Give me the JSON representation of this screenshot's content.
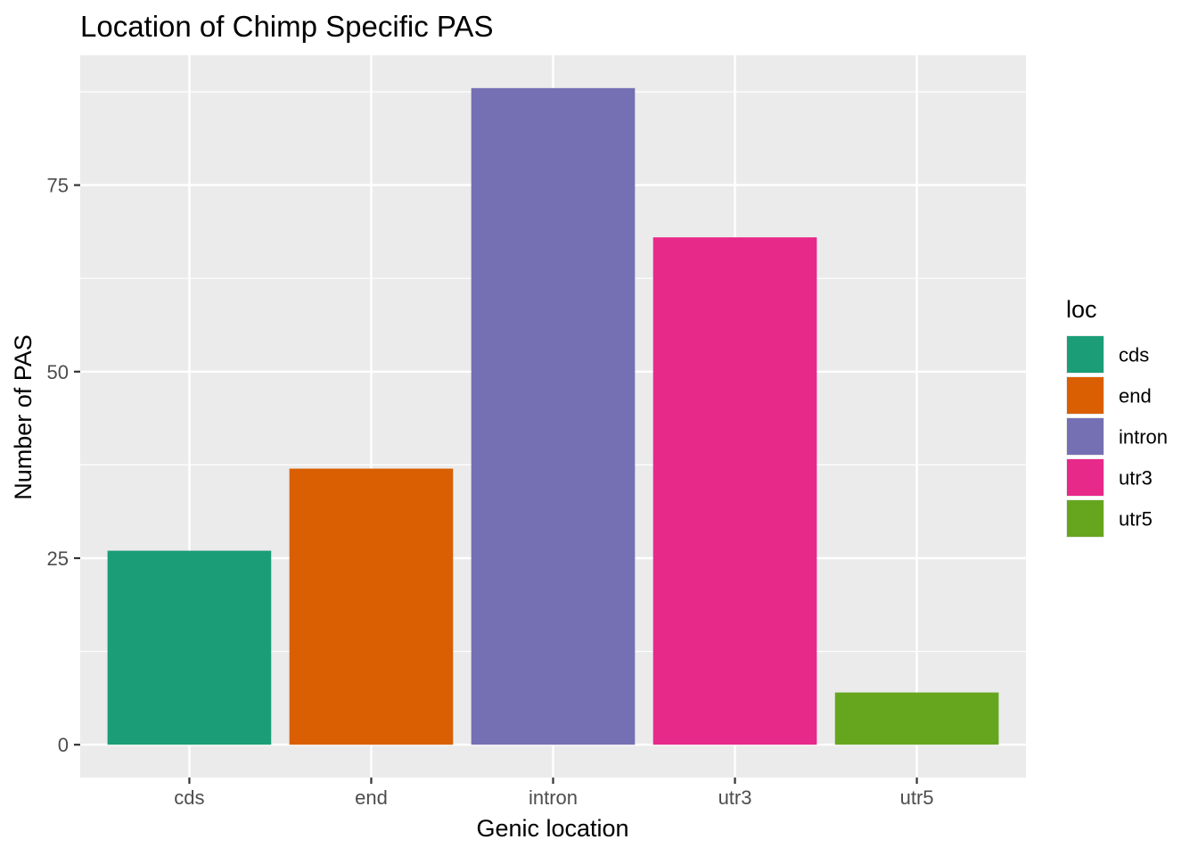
{
  "chart_data": {
    "type": "bar",
    "title": "Location of Chimp Specific PAS",
    "xlabel": "Genic location",
    "ylabel": "Number of PAS",
    "categories": [
      "cds",
      "end",
      "intron",
      "utr3",
      "utr5"
    ],
    "values": [
      26,
      37,
      88,
      68,
      7
    ],
    "colors": [
      "#1b9e77",
      "#d95f02",
      "#7570b3",
      "#e7298a",
      "#66a61e"
    ],
    "ylim": [
      -4.4,
      92.4
    ],
    "yticks": [
      0,
      25,
      50,
      75
    ],
    "yminor": [
      12.5,
      37.5,
      62.5,
      87.5
    ],
    "grid": true,
    "panel_background": "#ebebeb",
    "grid_color": "#ffffff",
    "legend": {
      "title": "loc",
      "placement": "right",
      "entries": [
        "cds",
        "end",
        "intron",
        "utr3",
        "utr5"
      ]
    }
  }
}
